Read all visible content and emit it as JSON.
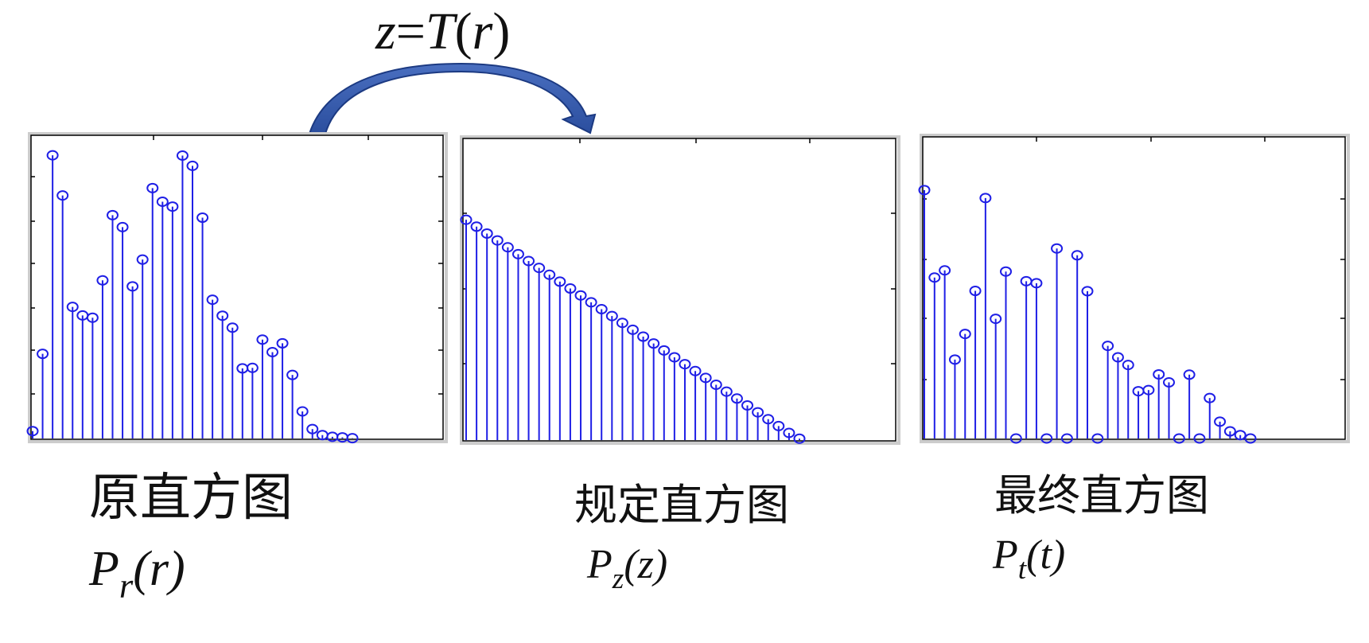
{
  "transform_label": {
    "lhs": "z",
    "eq": "=",
    "func": "T",
    "arg": "r"
  },
  "colors": {
    "stem": "#1f1fe6",
    "arrow_fill": "#2f54a6",
    "arrow_edge": "#1c3a82",
    "frame": "#cccccc",
    "axis": "#000000",
    "text": "#111111"
  },
  "charts": [
    {
      "id": "original",
      "title": "原直方图",
      "formula": {
        "base": "P",
        "sub": "r",
        "arg": "(r)"
      }
    },
    {
      "id": "specified",
      "title": "规定直方图",
      "formula": {
        "base": "P",
        "sub": "z",
        "arg": "(z)"
      }
    },
    {
      "id": "final",
      "title": "最终直方图",
      "formula": {
        "base": "P",
        "sub": "t",
        "arg": "(t)"
      }
    }
  ],
  "chart_data": [
    {
      "type": "stem",
      "name": "original",
      "marker": "circle",
      "ylim": [
        0,
        1
      ],
      "x": [
        0,
        1,
        2,
        3,
        4,
        5,
        6,
        7,
        8,
        9,
        10,
        11,
        12,
        13,
        14,
        15,
        16,
        17,
        18,
        19,
        20,
        21,
        22,
        23,
        24,
        25,
        26,
        27,
        28,
        29,
        30,
        31,
        32
      ],
      "values": [
        0.026,
        0.297,
        0.994,
        0.853,
        0.462,
        0.432,
        0.424,
        0.555,
        0.784,
        0.742,
        0.534,
        0.628,
        0.879,
        0.831,
        0.814,
        0.993,
        0.957,
        0.775,
        0.487,
        0.431,
        0.389,
        0.246,
        0.248,
        0.347,
        0.303,
        0.334,
        0.223,
        0.095,
        0.033,
        0.012,
        0.006,
        0.004,
        0.001
      ]
    },
    {
      "type": "stem",
      "name": "specified",
      "marker": "circle",
      "ylim": [
        0,
        1
      ],
      "x": [
        0,
        1,
        2,
        3,
        4,
        5,
        6,
        7,
        8,
        9,
        10,
        11,
        12,
        13,
        14,
        15,
        16,
        17,
        18,
        19,
        20,
        21,
        22,
        23,
        24,
        25,
        26,
        27,
        28,
        29,
        30,
        31,
        32
      ],
      "values": [
        0.769,
        0.745,
        0.721,
        0.697,
        0.673,
        0.649,
        0.625,
        0.601,
        0.577,
        0.553,
        0.529,
        0.505,
        0.481,
        0.457,
        0.433,
        0.409,
        0.385,
        0.361,
        0.337,
        0.313,
        0.289,
        0.265,
        0.241,
        0.217,
        0.193,
        0.169,
        0.145,
        0.121,
        0.097,
        0.073,
        0.049,
        0.025,
        0.005
      ]
    },
    {
      "type": "stem",
      "name": "final",
      "marker": "circle",
      "ylim": [
        0,
        1
      ],
      "x": [
        0,
        1,
        2,
        3,
        4,
        5,
        6,
        7,
        8,
        9,
        10,
        11,
        12,
        13,
        14,
        15,
        16,
        17,
        18,
        19,
        20,
        21,
        22,
        23,
        24,
        25,
        26,
        27,
        28,
        29,
        30,
        31,
        32
      ],
      "values": [
        0.872,
        0.565,
        0.59,
        0.277,
        0.367,
        0.518,
        0.844,
        0.42,
        0.586,
        0,
        0.552,
        0.545,
        0,
        0.667,
        0,
        0.643,
        0.517,
        0,
        0.325,
        0.285,
        0.258,
        0.166,
        0.17,
        0.225,
        0.197,
        0,
        0.224,
        0,
        0.142,
        0.059,
        0.025,
        0.012,
        0
      ]
    }
  ]
}
